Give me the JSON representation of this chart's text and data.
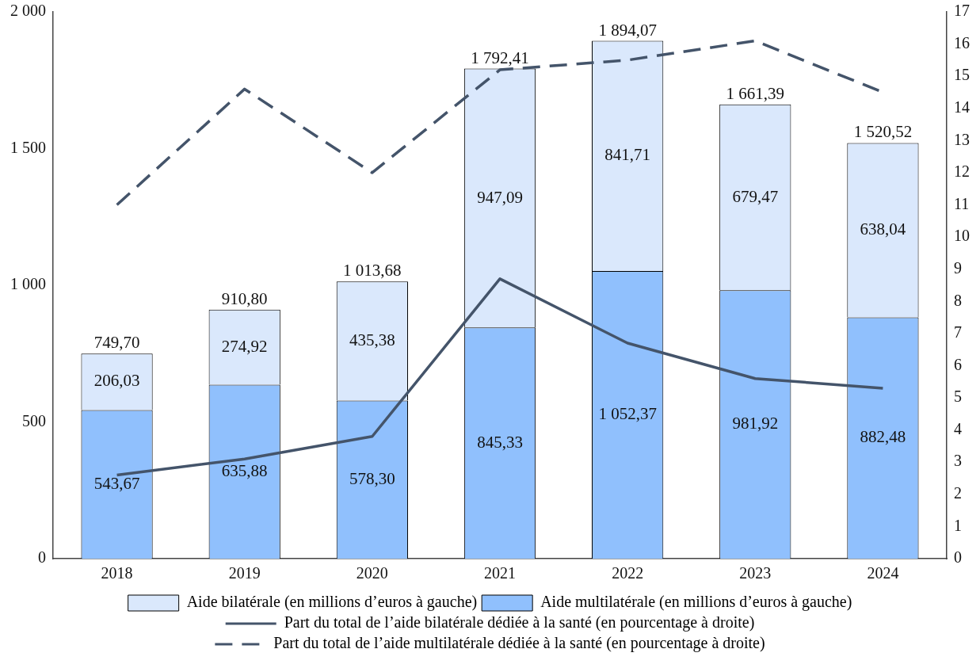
{
  "chart_data": {
    "type": "bar",
    "stacked": true,
    "categories": [
      "2018",
      "2019",
      "2020",
      "2021",
      "2022",
      "2023",
      "2024"
    ],
    "series": [
      {
        "name": "Aide multilatérale (en millions d’euros à gauche)",
        "color": "#90c0fd",
        "values": [
          543.67,
          635.88,
          578.3,
          845.33,
          1052.37,
          981.92,
          882.48
        ],
        "value_labels": [
          "543,67",
          "635,88",
          "578,30",
          "845,33",
          "1 052,37",
          "981,92",
          "882,48"
        ]
      },
      {
        "name": "Aide bilatérale (en millions d’euros à gauche)",
        "color": "#dae8fc",
        "values": [
          206.03,
          274.92,
          435.38,
          947.09,
          841.71,
          679.47,
          638.04
        ],
        "value_labels": [
          "206,03",
          "274,92",
          "435,38",
          "947,09",
          "841,71",
          "679,47",
          "638,04"
        ]
      },
      {
        "name": "Part du total de l’aide bilatérale dédiée à la santé (en pourcentage à droite)",
        "type": "line",
        "axis": "y2",
        "color": "#44546a",
        "line_style": "solid",
        "values": [
          2.6,
          3.1,
          3.8,
          8.7,
          6.7,
          5.6,
          5.3
        ]
      },
      {
        "name": "Part du total de l’aide multilatérale dédiée à la santé (en pourcentage à droite)",
        "type": "line",
        "axis": "y2",
        "color": "#44546a",
        "line_style": "dashed",
        "values": [
          11.0,
          14.6,
          12.0,
          15.2,
          15.5,
          16.1,
          14.5
        ]
      }
    ],
    "totals": [
      "749,70",
      "910,80",
      "1 013,68",
      "1 792,41",
      "1 894,07",
      "1 661,39",
      "1 520,52"
    ],
    "ylim": [
      0,
      2000
    ],
    "yticks": [
      0,
      {
        "value": 500,
        "label": "500"
      },
      {
        "value": 1000,
        "label": "1 000"
      },
      {
        "value": 1500,
        "label": "1 500"
      },
      {
        "value": 2000,
        "label": "2 000"
      }
    ],
    "y2lim": [
      0,
      17
    ],
    "y2ticks": [
      0,
      1,
      2,
      3,
      4,
      5,
      6,
      7,
      8,
      9,
      10,
      11,
      12,
      13,
      14,
      15,
      16,
      17
    ],
    "grid": false,
    "legend": "bottom",
    "marker": "none"
  }
}
